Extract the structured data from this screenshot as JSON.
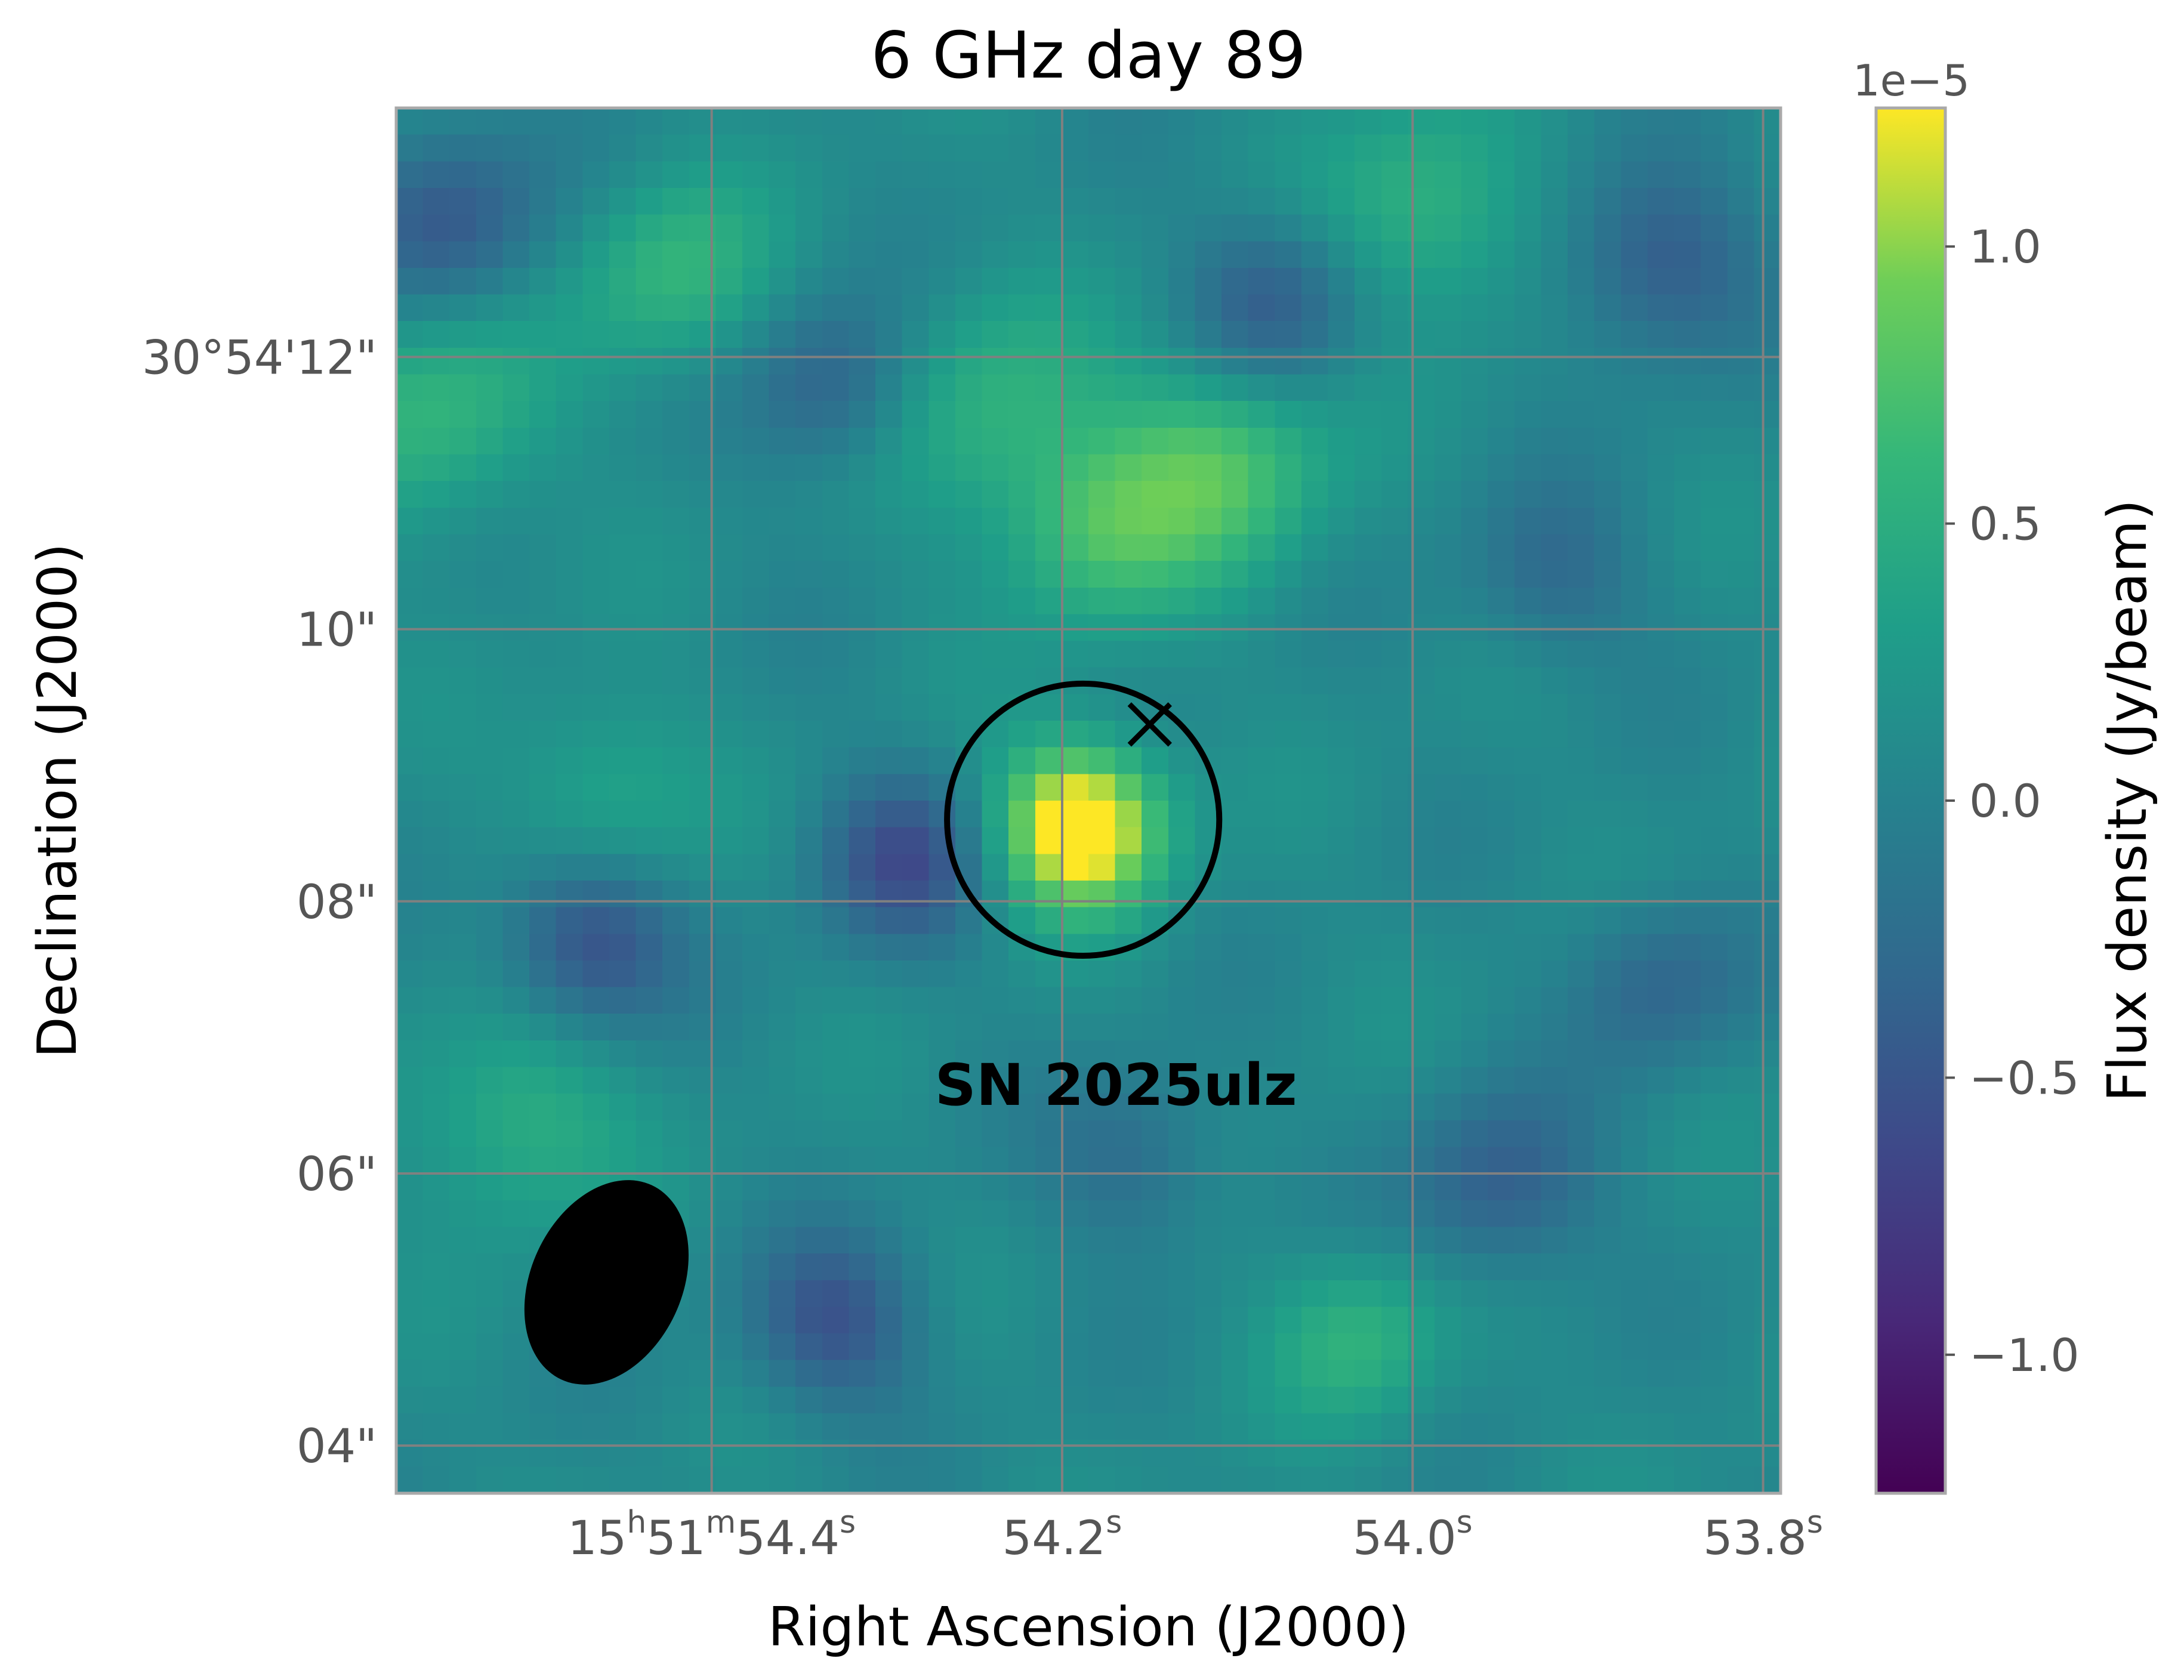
{
  "chart_data": {
    "type": "heatmap",
    "title": "6 GHz day 89",
    "xlabel": "Right Ascension (J2000)",
    "ylabel": "Declination (J2000)",
    "colormap": "viridis",
    "x_ticks": [
      {
        "value_s": 54.4,
        "label": "15h51m54.4s",
        "parts": [
          "15",
          "h",
          "51",
          "m",
          "54.4",
          "s"
        ]
      },
      {
        "value_s": 54.2,
        "label": "54.2s",
        "parts": [
          "",
          "",
          "",
          "",
          "54.2",
          "s"
        ]
      },
      {
        "value_s": 54.0,
        "label": "54.0s",
        "parts": [
          "",
          "",
          "",
          "",
          "54.0",
          "s"
        ]
      },
      {
        "value_s": 53.8,
        "label": "53.8s",
        "parts": [
          "",
          "",
          "",
          "",
          "53.8",
          "s"
        ]
      }
    ],
    "y_ticks": [
      {
        "value_arcsec": 12,
        "label": "30°54'12\""
      },
      {
        "value_arcsec": 10,
        "label": "10\""
      },
      {
        "value_arcsec": 8,
        "label": "08\""
      },
      {
        "value_arcsec": 6,
        "label": "06\""
      },
      {
        "value_arcsec": 4,
        "label": "04\""
      }
    ],
    "xlim_s": [
      54.58,
      53.79
    ],
    "ylim_arcsec": [
      3.65,
      13.83
    ],
    "colorbar": {
      "label": "Flux density (Jy/beam)",
      "offset_text": "1e−5",
      "vmin": -1.25,
      "vmax": 1.25,
      "ticks": [
        {
          "value": 1.0,
          "label": "1.0"
        },
        {
          "value": 0.5,
          "label": "0.5"
        },
        {
          "value": 0.0,
          "label": "0.0"
        },
        {
          "value": -0.5,
          "label": "−0.5"
        },
        {
          "value": -1.0,
          "label": "−1.0"
        }
      ]
    },
    "sources": [
      {
        "name": "peak",
        "ra_s": 54.19,
        "dec_arcsec": 8.55,
        "amp": 1.6,
        "sigma_arcsec": 0.42
      },
      {
        "name": "ridge",
        "ra_s": 54.11,
        "dec_arcsec": 11.2,
        "amp": 0.75,
        "sigma_arcsec": 0.55
      },
      {
        "name": "ridge-b",
        "ra_s": 54.18,
        "dec_arcsec": 10.7,
        "amp": 0.6,
        "sigma_arcsec": 0.5
      },
      {
        "name": "ridge-c",
        "ra_s": 54.24,
        "dec_arcsec": 11.6,
        "amp": 0.5,
        "sigma_arcsec": 0.6
      },
      {
        "name": "ne-blob",
        "ra_s": 53.99,
        "dec_arcsec": 13.1,
        "amp": 0.55,
        "sigma_arcsec": 0.55
      },
      {
        "name": "nw-blob",
        "ra_s": 54.42,
        "dec_arcsec": 12.6,
        "amp": 0.55,
        "sigma_arcsec": 0.5
      },
      {
        "name": "w-edge",
        "ra_s": 54.56,
        "dec_arcsec": 11.6,
        "amp": 0.55,
        "sigma_arcsec": 0.6
      },
      {
        "name": "sw-band",
        "ra_s": 54.51,
        "dec_arcsec": 6.4,
        "amp": 0.5,
        "sigma_arcsec": 0.55
      },
      {
        "name": "s-blob",
        "ra_s": 54.03,
        "dec_arcsec": 4.8,
        "amp": 0.5,
        "sigma_arcsec": 0.45
      },
      {
        "name": "w-mid",
        "ra_s": 54.46,
        "dec_arcsec": 8.8,
        "amp": 0.4,
        "sigma_arcsec": 0.5
      },
      {
        "name": "nw-hole",
        "ra_s": 54.55,
        "dec_arcsec": 13.0,
        "amp": -0.6,
        "sigma_arcsec": 0.5
      },
      {
        "name": "hole-a",
        "ra_s": 54.33,
        "dec_arcsec": 11.8,
        "amp": -0.55,
        "sigma_arcsec": 0.45
      },
      {
        "name": "hole-b",
        "ra_s": 54.29,
        "dec_arcsec": 8.3,
        "amp": -0.7,
        "sigma_arcsec": 0.45
      },
      {
        "name": "hole-c",
        "ra_s": 54.47,
        "dec_arcsec": 7.7,
        "amp": -0.75,
        "sigma_arcsec": 0.45
      },
      {
        "name": "hole-d",
        "ra_s": 54.08,
        "dec_arcsec": 12.4,
        "amp": -0.55,
        "sigma_arcsec": 0.45
      },
      {
        "name": "hole-e",
        "ra_s": 53.86,
        "dec_arcsec": 12.7,
        "amp": -0.6,
        "sigma_arcsec": 0.5
      },
      {
        "name": "hole-f",
        "ra_s": 53.95,
        "dec_arcsec": 5.9,
        "amp": -0.55,
        "sigma_arcsec": 0.5
      },
      {
        "name": "hole-g",
        "ra_s": 54.33,
        "dec_arcsec": 4.9,
        "amp": -0.65,
        "sigma_arcsec": 0.45
      },
      {
        "name": "hole-h",
        "ra_s": 54.16,
        "dec_arcsec": 6.1,
        "amp": -0.4,
        "sigma_arcsec": 0.45
      },
      {
        "name": "hole-i",
        "ra_s": 53.86,
        "dec_arcsec": 7.4,
        "amp": -0.45,
        "sigma_arcsec": 0.45
      },
      {
        "name": "hole-j",
        "ra_s": 53.92,
        "dec_arcsec": 10.4,
        "amp": -0.4,
        "sigma_arcsec": 0.45
      }
    ],
    "annotations": {
      "target_label": "SN 2025ulz",
      "target_circle": {
        "ra_s": 54.188,
        "dec_arcsec": 8.6,
        "radius_arcsec": 1.0
      },
      "cross_marker": {
        "ra_s": 54.15,
        "dec_arcsec": 9.3
      },
      "beam": {
        "ra_s": 54.46,
        "dec_arcsec": 5.2,
        "major_arcsec": 1.05,
        "minor_arcsec": 0.74,
        "pa_deg": 65
      }
    }
  }
}
